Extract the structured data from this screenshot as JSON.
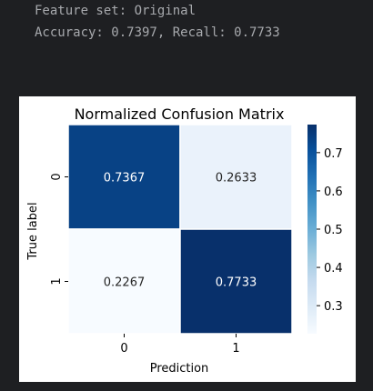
{
  "output": {
    "line1": "Feature set: Original",
    "line2": "Accuracy: 0.7397, Recall: 0.7733"
  },
  "chart_data": {
    "type": "heatmap",
    "title": "Normalized Confusion Matrix",
    "xlabel": "Prediction",
    "ylabel": "True label",
    "x_categories": [
      "0",
      "1"
    ],
    "y_categories": [
      "0",
      "1"
    ],
    "values": [
      [
        0.7367,
        0.2633
      ],
      [
        0.2267,
        0.7733
      ]
    ],
    "annotations": [
      [
        "0.7367",
        "0.2633"
      ],
      [
        "0.2267",
        "0.7733"
      ]
    ],
    "colormap": "Blues",
    "colorbar": {
      "range": [
        0.2267,
        0.7733
      ],
      "ticks": [
        0.3,
        0.4,
        0.5,
        0.6,
        0.7
      ],
      "tick_labels": [
        "0.3",
        "0.4",
        "0.5",
        "0.6",
        "0.7"
      ]
    }
  }
}
